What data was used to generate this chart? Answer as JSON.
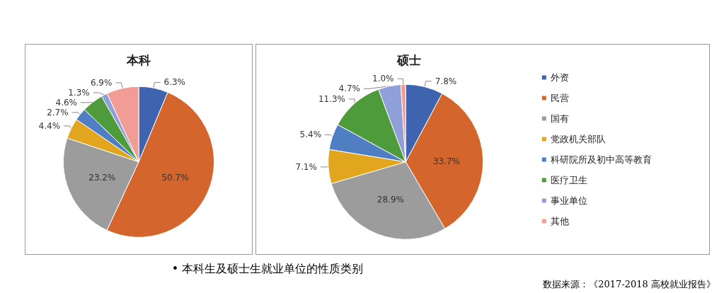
{
  "chart_data": [
    {
      "type": "pie",
      "title": "本科",
      "categories": [
        null,
        null,
        null,
        null,
        null,
        null,
        null,
        null
      ],
      "values": [
        6.3,
        50.7,
        23.2,
        4.4,
        2.7,
        4.6,
        1.3,
        6.9
      ],
      "value_labels": [
        "6.3%",
        "50.7%",
        "23.2%",
        "4.4%",
        "2.7%",
        "4.6%",
        "1.3%",
        "6.9%"
      ],
      "colors": [
        "#3e64b0",
        "#d4652c",
        "#9c9c9c",
        "#e2a51e",
        "#4f7fc2",
        "#4e9b3c",
        "#8f9fd8",
        "#f29c96"
      ],
      "legend": false
    },
    {
      "type": "pie",
      "title": "硕士",
      "categories": [
        "外资",
        "民营",
        "国有",
        "党政机关部队",
        "科研院所及初中高等教育",
        "医疗卫生",
        "事业单位",
        "其他"
      ],
      "values": [
        7.8,
        33.7,
        28.9,
        7.1,
        5.4,
        11.3,
        4.7,
        1.0
      ],
      "value_labels": [
        "7.8%",
        "33.7%",
        "28.9%",
        "7.1%",
        "5.4%",
        "11.3%",
        "4.7%",
        "1.0%"
      ],
      "colors": [
        "#3e64b0",
        "#d4652c",
        "#9c9c9c",
        "#e2a51e",
        "#4f7fc2",
        "#4e9b3c",
        "#8f9fd8",
        "#f29c96"
      ],
      "legend": "right",
      "annotations": [
        "• 本科生及硕士生就业单位的性质类别",
        "数据来源：《2017-2018 高校就业报告》"
      ]
    }
  ]
}
